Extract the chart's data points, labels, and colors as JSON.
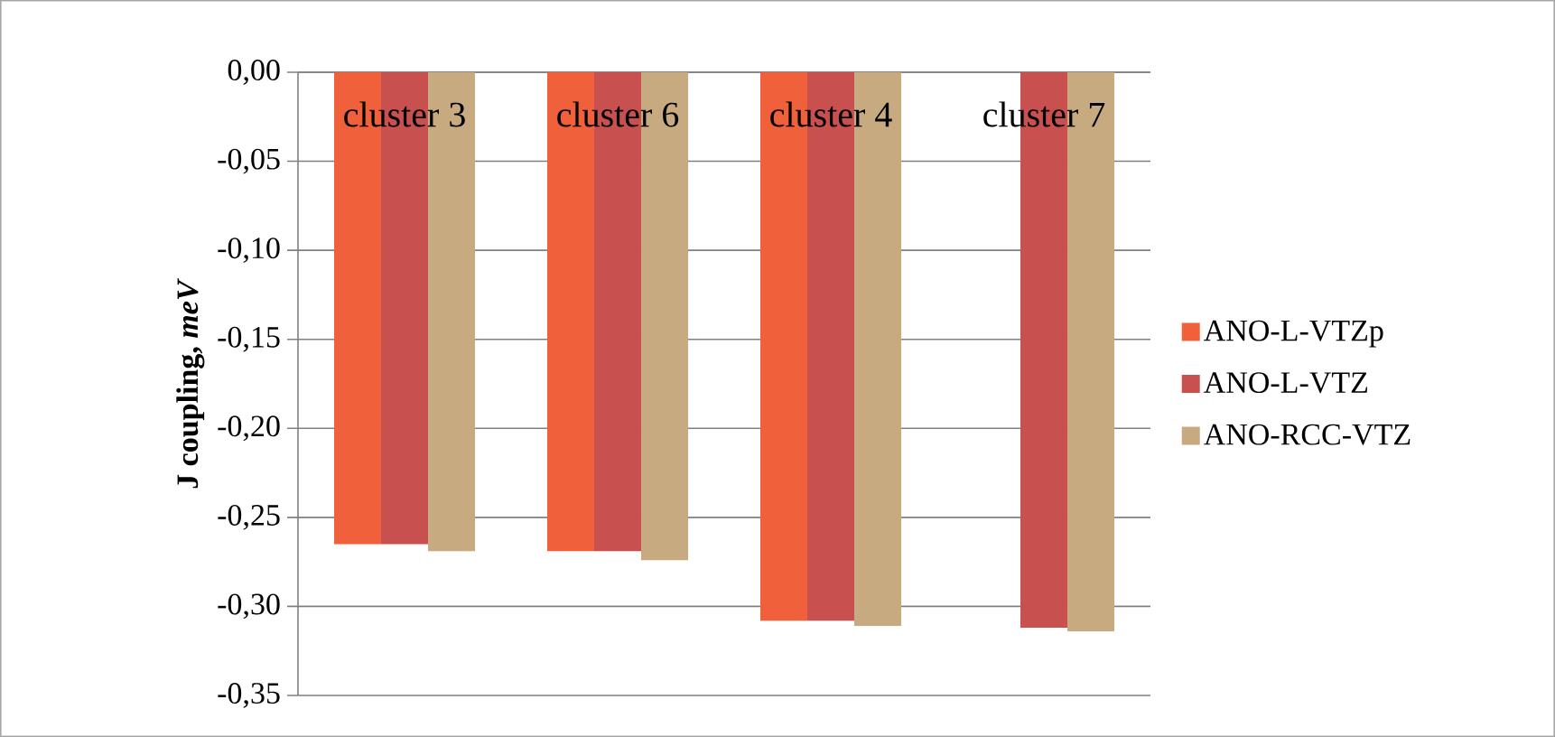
{
  "chart_data": {
    "type": "bar",
    "ylabel": "J coupling, *meV*",
    "categories": [
      "cluster 3",
      "cluster 6",
      "cluster 4",
      "cluster 7"
    ],
    "series": [
      {
        "name": "ANO-L-VTZp",
        "color": "#f0603a",
        "values": [
          -0.265,
          -0.269,
          -0.308,
          null
        ]
      },
      {
        "name": "ANO-L-VTZ",
        "color": "#c8504f",
        "values": [
          -0.265,
          -0.269,
          -0.308,
          -0.312
        ]
      },
      {
        "name": "ANO-RCC-VTZ",
        "color": "#c8aa80",
        "values": [
          -0.269,
          -0.274,
          -0.311,
          -0.314
        ]
      }
    ],
    "ylim": [
      -0.35,
      0
    ],
    "yticks": [
      {
        "value": 0,
        "label": "0,00"
      },
      {
        "value": -0.05,
        "label": "-0,05"
      },
      {
        "value": -0.1,
        "label": "-0,10"
      },
      {
        "value": -0.15,
        "label": "-0,15"
      },
      {
        "value": -0.2,
        "label": "-0,20"
      },
      {
        "value": -0.25,
        "label": "-0,25"
      },
      {
        "value": -0.3,
        "label": "-0,30"
      },
      {
        "value": -0.35,
        "label": "-0,35"
      }
    ],
    "grid": "y",
    "legend": "right"
  }
}
